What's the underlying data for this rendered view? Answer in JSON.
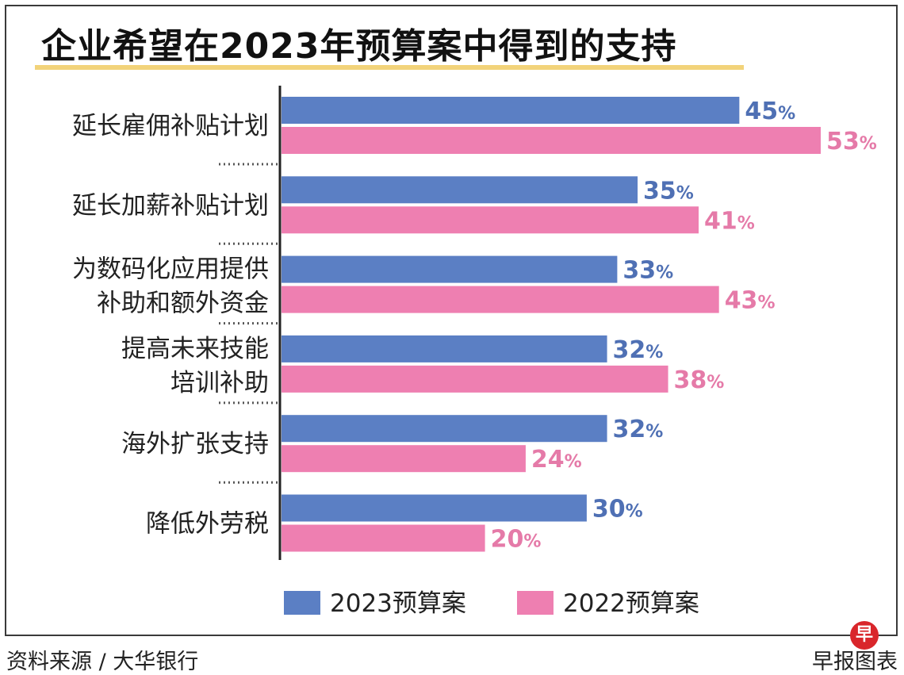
{
  "chart_data": {
    "type": "bar",
    "orientation": "horizontal",
    "title": "企业希望在2023年预算案中得到的支持",
    "categories": [
      [
        "延长雇佣补贴计划"
      ],
      [
        "延长加薪补贴计划"
      ],
      [
        "为数码化应用提供",
        "补助和额外资金"
      ],
      [
        "提高未来技能",
        "培训补助"
      ],
      [
        "海外扩张支持"
      ],
      [
        "降低外劳税"
      ]
    ],
    "series": [
      {
        "name": "2023预算案",
        "color": "#5b7fc4",
        "values": [
          45,
          35,
          33,
          32,
          32,
          30
        ]
      },
      {
        "name": "2022预算案",
        "color": "#ee7fb1",
        "values": [
          53,
          41,
          43,
          38,
          24,
          20
        ]
      }
    ],
    "value_suffix": "%",
    "label_colors": [
      "#4f70b4",
      "#e57aa8"
    ],
    "xlim": [
      0,
      60
    ],
    "legend_position": "bottom"
  },
  "source": "资料来源 / 大华银行",
  "credit": "早报图表",
  "logo_char": "早"
}
